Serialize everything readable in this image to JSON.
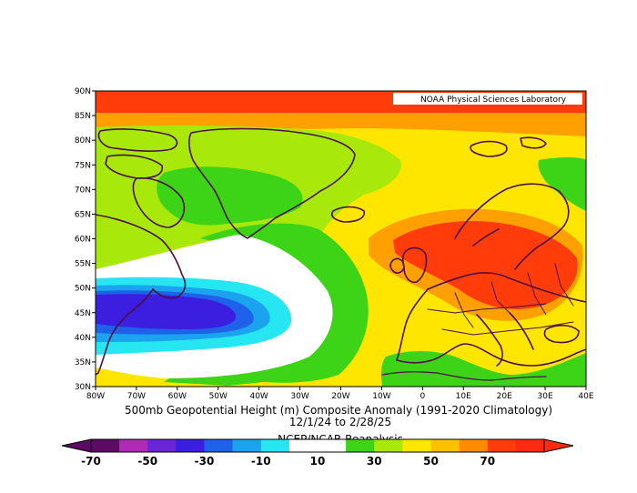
{
  "credit": "NOAA Physical Sciences Laboratory",
  "caption": {
    "line1": "500mb Geopotential Height (m) Composite Anomaly (1991-2020 Climatology)",
    "line2": "12/1/24  to 2/28/25",
    "line3": "NCEP/NCAR Reanalysis"
  },
  "axes": {
    "lat_labels": [
      "90N",
      "85N",
      "80N",
      "75N",
      "70N",
      "65N",
      "60N",
      "55N",
      "50N",
      "45N",
      "40N",
      "35N",
      "30N"
    ],
    "lon_labels": [
      "80W",
      "70W",
      "60W",
      "50W",
      "40W",
      "30W",
      "20W",
      "10W",
      "0",
      "10E",
      "20E",
      "30E",
      "40E"
    ],
    "lat_range": [
      30,
      90
    ],
    "lon_range": [
      -80,
      40
    ]
  },
  "colorbar": {
    "labels": [
      "-70",
      "-50",
      "-30",
      "-10",
      "10",
      "30",
      "50",
      "70"
    ],
    "levels": [
      -70,
      -60,
      -50,
      -40,
      -30,
      -20,
      -10,
      0,
      10,
      20,
      30,
      40,
      50,
      60,
      70
    ],
    "colors": [
      "#5c0a63",
      "#b02ab8",
      "#6a25d6",
      "#3c1ee0",
      "#1f62ea",
      "#1ca3f0",
      "#26e6f2",
      "#ffffff",
      "#ffffff",
      "#3dd418",
      "#a8e80a",
      "#ffe600",
      "#ffc000",
      "#ff8c00",
      "#ff3c0a",
      "#ff2a10"
    ],
    "low_arrow_color": "#5c0a63",
    "high_arrow_color": "#ff2a10"
  },
  "fields": {
    "background": "#ffe600",
    "regions": [
      {
        "name": "polar-band",
        "color": "#ff3c0a"
      },
      {
        "name": "band-85",
        "color": "#ffa000"
      },
      {
        "name": "greenland-green",
        "color": "#a8e80a"
      },
      {
        "name": "greenland-inner",
        "color": "#3dd418"
      },
      {
        "name": "atlantic-green",
        "color": "#3dd418"
      },
      {
        "name": "trough-white",
        "color": "#ffffff"
      },
      {
        "name": "trough-cyan",
        "color": "#26e6f2"
      },
      {
        "name": "trough-blue1",
        "color": "#1ca3f0"
      },
      {
        "name": "trough-blue2",
        "color": "#1f62ea"
      },
      {
        "name": "trough-purple",
        "color": "#3c1ee0"
      },
      {
        "name": "europe-orange",
        "color": "#ffa000"
      },
      {
        "name": "europe-red",
        "color": "#ff3c0a"
      },
      {
        "name": "scandinavia-green",
        "color": "#3dd418"
      },
      {
        "name": "south-green",
        "color": "#3dd418"
      }
    ]
  }
}
